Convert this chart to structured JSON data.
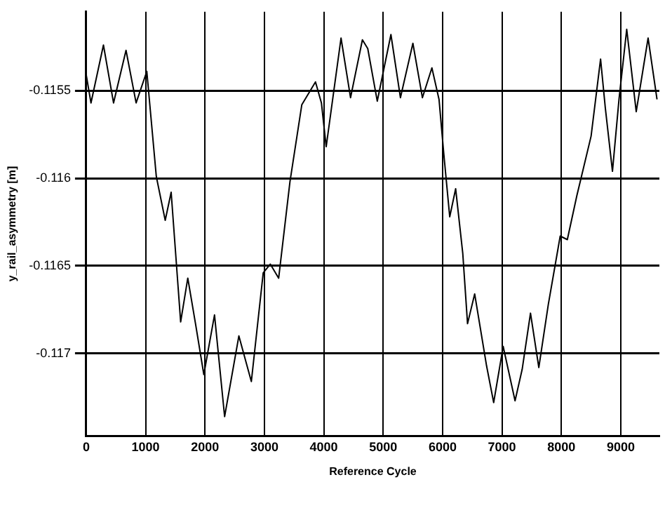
{
  "chart_data": {
    "type": "line",
    "xlabel": "Reference Cycle",
    "ylabel": "y_rail_asymmetry [m]",
    "xlim": [
      0,
      9650
    ],
    "xticks": [
      0,
      1000,
      2000,
      3000,
      4000,
      5000,
      6000,
      7000,
      8000,
      9000
    ],
    "ylim": [
      -0.11747,
      -0.11505
    ],
    "yticks": [
      -0.1155,
      -0.116,
      -0.1165,
      -0.117
    ],
    "grid": true,
    "legend": false,
    "marker": "none",
    "line_style": "solid",
    "series": [
      {
        "color": "#000000",
        "x": [
          0,
          80,
          290,
          460,
          670,
          840,
          1020,
          1180,
          1330,
          1430,
          1590,
          1710,
          1840,
          1980,
          2160,
          2330,
          2570,
          2780,
          2980,
          3100,
          3240,
          3430,
          3630,
          3860,
          3960,
          4040,
          4290,
          4450,
          4650,
          4740,
          4900,
          5130,
          5290,
          5500,
          5660,
          5820,
          5940,
          6020,
          6120,
          6220,
          6340,
          6420,
          6540,
          6740,
          6860,
          7020,
          7220,
          7340,
          7480,
          7620,
          7780,
          7980,
          8100,
          8260,
          8500,
          8660,
          8740,
          8860,
          8970,
          9100,
          9260,
          9460,
          9610
        ],
        "values": [
          -0.11541,
          -0.11557,
          -0.11524,
          -0.11557,
          -0.11527,
          -0.11557,
          -0.11539,
          -0.11599,
          -0.11624,
          -0.11608,
          -0.11682,
          -0.11657,
          -0.11683,
          -0.11712,
          -0.11678,
          -0.11736,
          -0.1169,
          -0.11716,
          -0.11654,
          -0.11649,
          -0.11657,
          -0.11602,
          -0.11558,
          -0.11545,
          -0.11557,
          -0.11582,
          -0.1152,
          -0.11554,
          -0.11521,
          -0.11526,
          -0.11556,
          -0.11518,
          -0.11554,
          -0.11523,
          -0.11554,
          -0.11537,
          -0.11555,
          -0.11586,
          -0.11622,
          -0.11606,
          -0.11643,
          -0.11683,
          -0.11666,
          -0.11707,
          -0.11728,
          -0.11696,
          -0.11727,
          -0.11709,
          -0.11677,
          -0.11708,
          -0.11672,
          -0.11633,
          -0.11635,
          -0.1161,
          -0.11576,
          -0.11532,
          -0.1156,
          -0.11596,
          -0.11555,
          -0.11515,
          -0.11562,
          -0.1152,
          -0.11555
        ]
      }
    ]
  }
}
